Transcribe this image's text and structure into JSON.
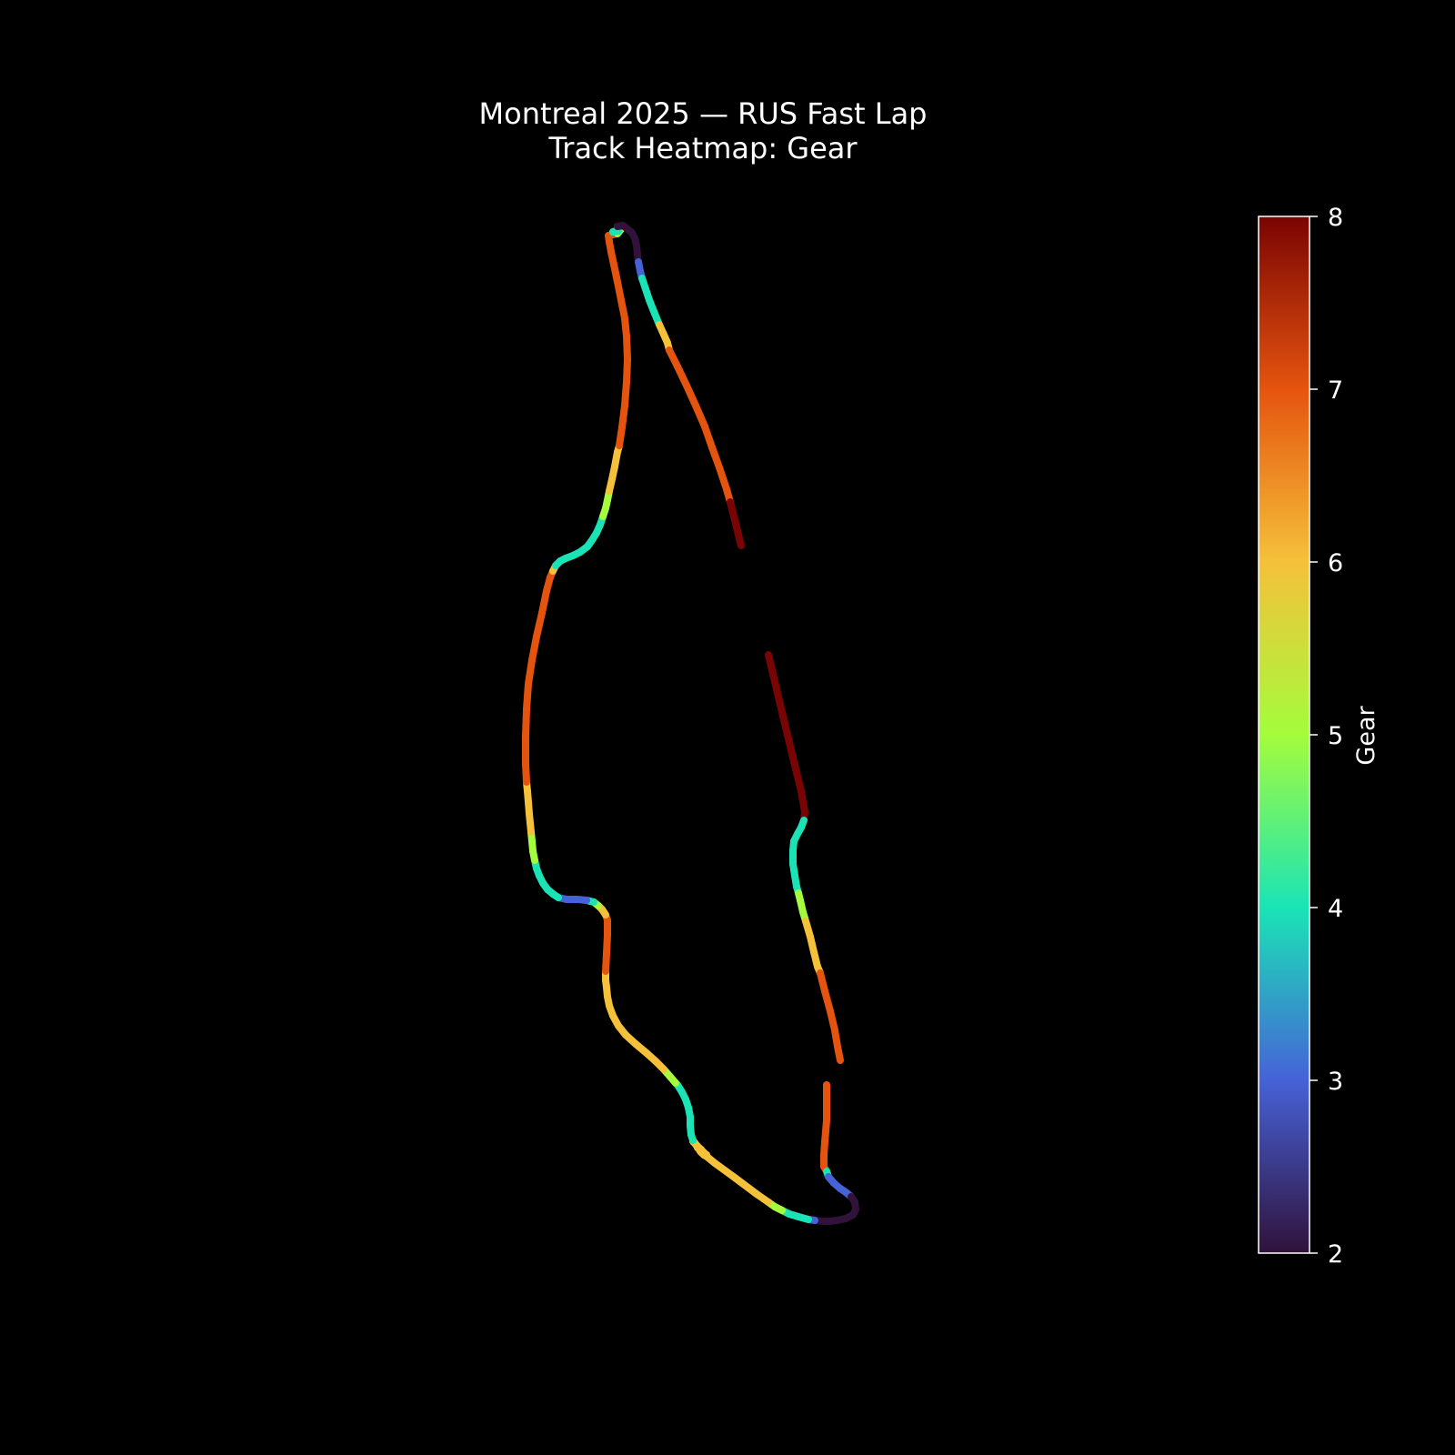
{
  "chart_data": {
    "type": "line",
    "title": "Montreal 2025 — RUS Fast Lap",
    "subtitle": "Track Heatmap: Gear",
    "colorbar": {
      "label": "Gear",
      "range": [
        2,
        8
      ],
      "ticks": [
        "2",
        "3",
        "4",
        "5",
        "6",
        "7",
        "8"
      ],
      "colormap": [
        "#30123b",
        "#4662d7",
        "#1ae4b6",
        "#a4fc3c",
        "#f5c13a",
        "#e5540e",
        "#7a0403"
      ]
    },
    "series": [
      {
        "points": [
          [
            909,
            1193,
            7
          ],
          [
            909,
            1232,
            7
          ],
          [
            907,
            1256,
            7
          ],
          [
            906,
            1270,
            7
          ],
          [
            906,
            1283,
            7
          ],
          [
            909,
            1288,
            4
          ],
          [
            911,
            1294,
            3
          ],
          [
            917,
            1301,
            3
          ],
          [
            924,
            1307,
            3
          ],
          [
            930,
            1311,
            3
          ],
          [
            936,
            1316,
            2
          ],
          [
            940,
            1322,
            2
          ],
          [
            941,
            1330,
            2
          ],
          [
            938,
            1336,
            2
          ],
          [
            930,
            1340,
            2
          ],
          [
            920,
            1342,
            2
          ],
          [
            912,
            1343,
            2
          ],
          [
            906,
            1343,
            2
          ],
          [
            896,
            1342,
            3
          ],
          [
            889,
            1341,
            4
          ],
          [
            878,
            1338,
            4
          ],
          [
            868,
            1335,
            4
          ],
          [
            860,
            1331,
            5
          ],
          [
            852,
            1327,
            5
          ],
          [
            845,
            1322,
            6
          ],
          [
            832,
            1313,
            6
          ],
          [
            808,
            1295,
            6
          ],
          [
            786,
            1279,
            6
          ],
          [
            775,
            1270,
            6
          ],
          [
            767,
            1262,
            6
          ],
          [
            774,
            1268,
            6
          ],
          [
            768,
            1262,
            6
          ],
          [
            777,
            1270,
            6
          ],
          [
            775,
            1270,
            6
          ],
          [
            766,
            1260,
            6
          ],
          [
            777,
            1271,
            6
          ],
          [
            762,
            1255,
            6
          ],
          [
            775,
            1270,
            6
          ],
          [
            771,
            1264,
            6
          ],
          [
            768,
            1262,
            6
          ],
          [
            776,
            1271,
            6
          ],
          [
            774,
            1270,
            6
          ],
          [
            770,
            1266,
            6
          ],
          [
            772,
            1268,
            6
          ],
          [
            768,
            1262,
            6
          ],
          [
            776,
            1271,
            6
          ],
          [
            773,
            1269,
            6
          ],
          [
            762,
            1254,
            4
          ],
          [
            760,
            1248,
            4
          ],
          [
            759,
            1238,
            4
          ],
          [
            759,
            1228,
            4
          ],
          [
            757,
            1218,
            4
          ],
          [
            754,
            1209,
            4
          ],
          [
            750,
            1201,
            4
          ],
          [
            745,
            1193,
            4
          ],
          [
            743,
            1191,
            5
          ],
          [
            737,
            1184,
            5
          ],
          [
            730,
            1176,
            6
          ],
          [
            721,
            1167,
            6
          ],
          [
            711,
            1158,
            6
          ],
          [
            699,
            1148,
            6
          ],
          [
            688,
            1138,
            6
          ],
          [
            680,
            1128,
            6
          ],
          [
            674,
            1117,
            6
          ],
          [
            670,
            1106,
            6
          ],
          [
            668,
            1096,
            6
          ],
          [
            667,
            1086,
            6
          ],
          [
            666,
            1078,
            6
          ],
          [
            666,
            1068,
            7
          ],
          [
            667,
            1048,
            7
          ],
          [
            668,
            1028,
            7
          ],
          [
            668,
            1012,
            7
          ],
          [
            666,
            1006,
            6
          ],
          [
            662,
            1000,
            6
          ],
          [
            658,
            996,
            5
          ],
          [
            653,
            992,
            4
          ],
          [
            645,
            990,
            3
          ],
          [
            635,
            989,
            3
          ],
          [
            623,
            989,
            3
          ],
          [
            614,
            987,
            4
          ],
          [
            608,
            983,
            4
          ],
          [
            602,
            978,
            4
          ],
          [
            597,
            971,
            4
          ],
          [
            593,
            963,
            4
          ],
          [
            590,
            955,
            4
          ],
          [
            588,
            946,
            5
          ],
          [
            586,
            936,
            5
          ],
          [
            585,
            925,
            5
          ],
          [
            584,
            915,
            6
          ],
          [
            583,
            905,
            6
          ],
          [
            582,
            895,
            6
          ],
          [
            581,
            882,
            6
          ],
          [
            580,
            870,
            6
          ],
          [
            579,
            860,
            7
          ],
          [
            578,
            840,
            7
          ],
          [
            578,
            810,
            7
          ],
          [
            579,
            780,
            7
          ],
          [
            581,
            752,
            7
          ],
          [
            585,
            726,
            7
          ],
          [
            590,
            700,
            7
          ],
          [
            596,
            674,
            7
          ],
          [
            601,
            650,
            7
          ],
          [
            605,
            635,
            7
          ],
          [
            608,
            628,
            6
          ],
          [
            611,
            622,
            4
          ],
          [
            616,
            617,
            4
          ],
          [
            622,
            614,
            4
          ],
          [
            630,
            611,
            4
          ],
          [
            638,
            607,
            4
          ],
          [
            646,
            601,
            4
          ],
          [
            651,
            594,
            4
          ],
          [
            656,
            586,
            4
          ],
          [
            660,
            577,
            4
          ],
          [
            663,
            568,
            5
          ],
          [
            666,
            559,
            5
          ],
          [
            668,
            550,
            5
          ],
          [
            670,
            540,
            6
          ],
          [
            673,
            527,
            6
          ],
          [
            676,
            513,
            6
          ],
          [
            679,
            497,
            6
          ],
          [
            681,
            490,
            7
          ],
          [
            684,
            470,
            7
          ],
          [
            687,
            446,
            7
          ],
          [
            689,
            420,
            7
          ],
          [
            690,
            395,
            7
          ],
          [
            689,
            370,
            7
          ],
          [
            687,
            350,
            7
          ],
          [
            683,
            330,
            7
          ],
          [
            679,
            310,
            7
          ],
          [
            675,
            291,
            7
          ],
          [
            672,
            277,
            7
          ],
          [
            670,
            266,
            7
          ],
          [
            669,
            259,
            7
          ],
          [
            679,
            257,
            5
          ],
          [
            683,
            252,
            5
          ],
          [
            674,
            255,
            4
          ],
          [
            680,
            254,
            4
          ],
          [
            679,
            249,
            2
          ],
          [
            685,
            248,
            2
          ],
          [
            689,
            251,
            2
          ],
          [
            695,
            256,
            2
          ],
          [
            698,
            262,
            2
          ],
          [
            700,
            270,
            2
          ],
          [
            701,
            280,
            2
          ],
          [
            702,
            288,
            3
          ],
          [
            704,
            298,
            3
          ],
          [
            706,
            306,
            4
          ],
          [
            710,
            318,
            4
          ],
          [
            714,
            330,
            4
          ],
          [
            720,
            345,
            4
          ],
          [
            725,
            357,
            6
          ],
          [
            730,
            368,
            6
          ],
          [
            734,
            377,
            6
          ],
          [
            736,
            385,
            7
          ],
          [
            745,
            403,
            7
          ],
          [
            755,
            424,
            7
          ],
          [
            765,
            446,
            7
          ],
          [
            775,
            469,
            7
          ],
          [
            783,
            492,
            7
          ],
          [
            791,
            514,
            7
          ],
          [
            799,
            538,
            7
          ],
          [
            803,
            552,
            8
          ],
          [
            815,
            600,
            8
          ],
          [
            830,
            660,
            8
          ],
          [
            845,
            720,
            8
          ],
          [
            858,
            775,
            8
          ],
          [
            870,
            825,
            8
          ],
          [
            881,
            870,
            8
          ],
          [
            885,
            893,
            8
          ],
          [
            884,
            902,
            4
          ],
          [
            881,
            910,
            4
          ],
          [
            877,
            917,
            4
          ],
          [
            873,
            925,
            4
          ],
          [
            872,
            935,
            4
          ],
          [
            872,
            950,
            4
          ],
          [
            874,
            963,
            4
          ],
          [
            876,
            975,
            4
          ],
          [
            878,
            982,
            5
          ],
          [
            880,
            990,
            5
          ],
          [
            883,
            1003,
            5
          ],
          [
            886,
            1013,
            6
          ],
          [
            891,
            1030,
            6
          ],
          [
            895,
            1047,
            6
          ],
          [
            899,
            1063,
            6
          ],
          [
            902,
            1070,
            7
          ],
          [
            907,
            1090,
            7
          ],
          [
            913,
            1112,
            7
          ],
          [
            918,
            1133,
            7
          ],
          [
            921,
            1151,
            7
          ],
          [
            924,
            1166,
            7
          ]
        ]
      }
    ]
  }
}
